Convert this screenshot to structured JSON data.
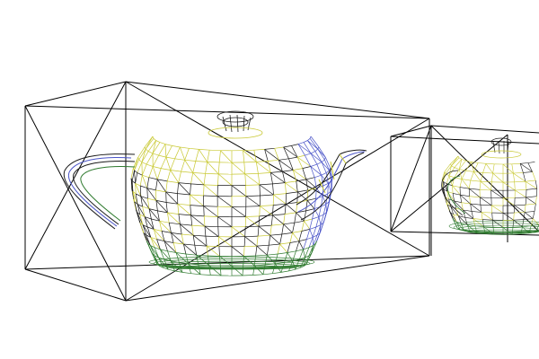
{
  "scene": {
    "background": "#ffffff",
    "box_color": "#000000",
    "mesh_colors": {
      "wire": "#1a1a1a",
      "yellow": "#c8c832",
      "blue": "#4a54c8",
      "green": "#2e7a2e"
    },
    "objects": [
      {
        "name": "teapot-large",
        "bounding_box": true
      },
      {
        "name": "teapot-small",
        "bounding_box": true
      }
    ]
  }
}
